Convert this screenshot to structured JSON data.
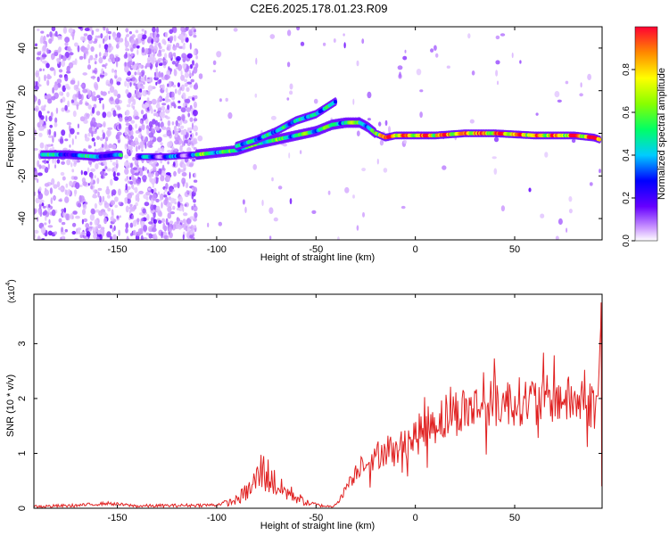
{
  "figure": {
    "title": "C2E6.2025.178.01.23.R09"
  },
  "chart_data": [
    {
      "type": "heatmap",
      "title": "C2E6.2025.178.01.23.R09",
      "xlabel": "Height of straight line (km)",
      "ylabel": "Frequency (Hz)",
      "xlim": [
        -192,
        94
      ],
      "ylim": [
        -50,
        50
      ],
      "xticks": [
        -150,
        -100,
        -50,
        0,
        50
      ],
      "yticks": [
        -40,
        -20,
        0,
        20,
        40
      ],
      "colorbar": {
        "label": "Normalized spectral amplitude",
        "range": [
          0,
          1
        ],
        "ticks": [
          0.0,
          0.2,
          0.4,
          0.6,
          0.8
        ],
        "tick_labels": [
          "0.0",
          "0.2",
          "0.4",
          "0.6",
          "0.8"
        ],
        "colormap": "rainbow"
      },
      "ridge": {
        "x": [
          -190,
          -175,
          -160,
          -150,
          -140,
          -125,
          -110,
          -100,
          -90,
          -80,
          -70,
          -60,
          -50,
          -42,
          -35,
          -28,
          -24,
          -20,
          -15,
          -10,
          0,
          10,
          25,
          40,
          60,
          80,
          90,
          93
        ],
        "freq": [
          -10,
          -10,
          -11,
          -10,
          -11,
          -11,
          -10,
          -9,
          -8,
          -5,
          -3,
          -1,
          1,
          4,
          5,
          5,
          3,
          0,
          -2,
          -1,
          -1,
          -1,
          0,
          0,
          -1,
          -1,
          -2,
          -3
        ]
      },
      "upper_branch": {
        "x": [
          -90,
          -80,
          -70,
          -60,
          -50,
          -45,
          -40
        ],
        "freq": [
          -6,
          -3,
          1,
          6,
          9,
          12,
          15
        ]
      },
      "grid": false,
      "legend": "none"
    },
    {
      "type": "line",
      "xlabel": "Height of straight line (km)",
      "ylabel": "SNR (10 * v/v)",
      "y_exponent_label": "(x10",
      "y_exponent_power": "4",
      "y_exponent_close": ")",
      "xlim": [
        -192,
        94
      ],
      "ylim": [
        0,
        3.9
      ],
      "xticks": [
        -150,
        -100,
        -50,
        0,
        50
      ],
      "yticks": [
        0,
        1,
        2,
        3
      ],
      "color": "#e02020",
      "series": [
        {
          "x": [
            -192,
            -170,
            -155,
            -140,
            -120,
            -100,
            -90,
            -83,
            -77,
            -73,
            -68,
            -62,
            -55,
            -48,
            -42,
            -38,
            -34,
            -30,
            -26,
            -22,
            -18,
            -14,
            -10,
            -5,
            0,
            5,
            10,
            20,
            30,
            40,
            50,
            60,
            70,
            80,
            88,
            92,
            93.5
          ],
          "values": [
            0.0,
            0.02,
            0.06,
            0.01,
            0.02,
            0.03,
            0.15,
            0.35,
            0.7,
            0.55,
            0.35,
            0.25,
            0.1,
            0.05,
            0.03,
            0.15,
            0.45,
            0.65,
            0.9,
            0.8,
            1.0,
            1.1,
            1.0,
            1.2,
            1.3,
            1.45,
            1.6,
            1.75,
            1.85,
            1.9,
            1.95,
            1.95,
            2.0,
            1.95,
            1.9,
            1.85,
            3.7
          ]
        }
      ],
      "grid": false,
      "legend": "none"
    }
  ]
}
